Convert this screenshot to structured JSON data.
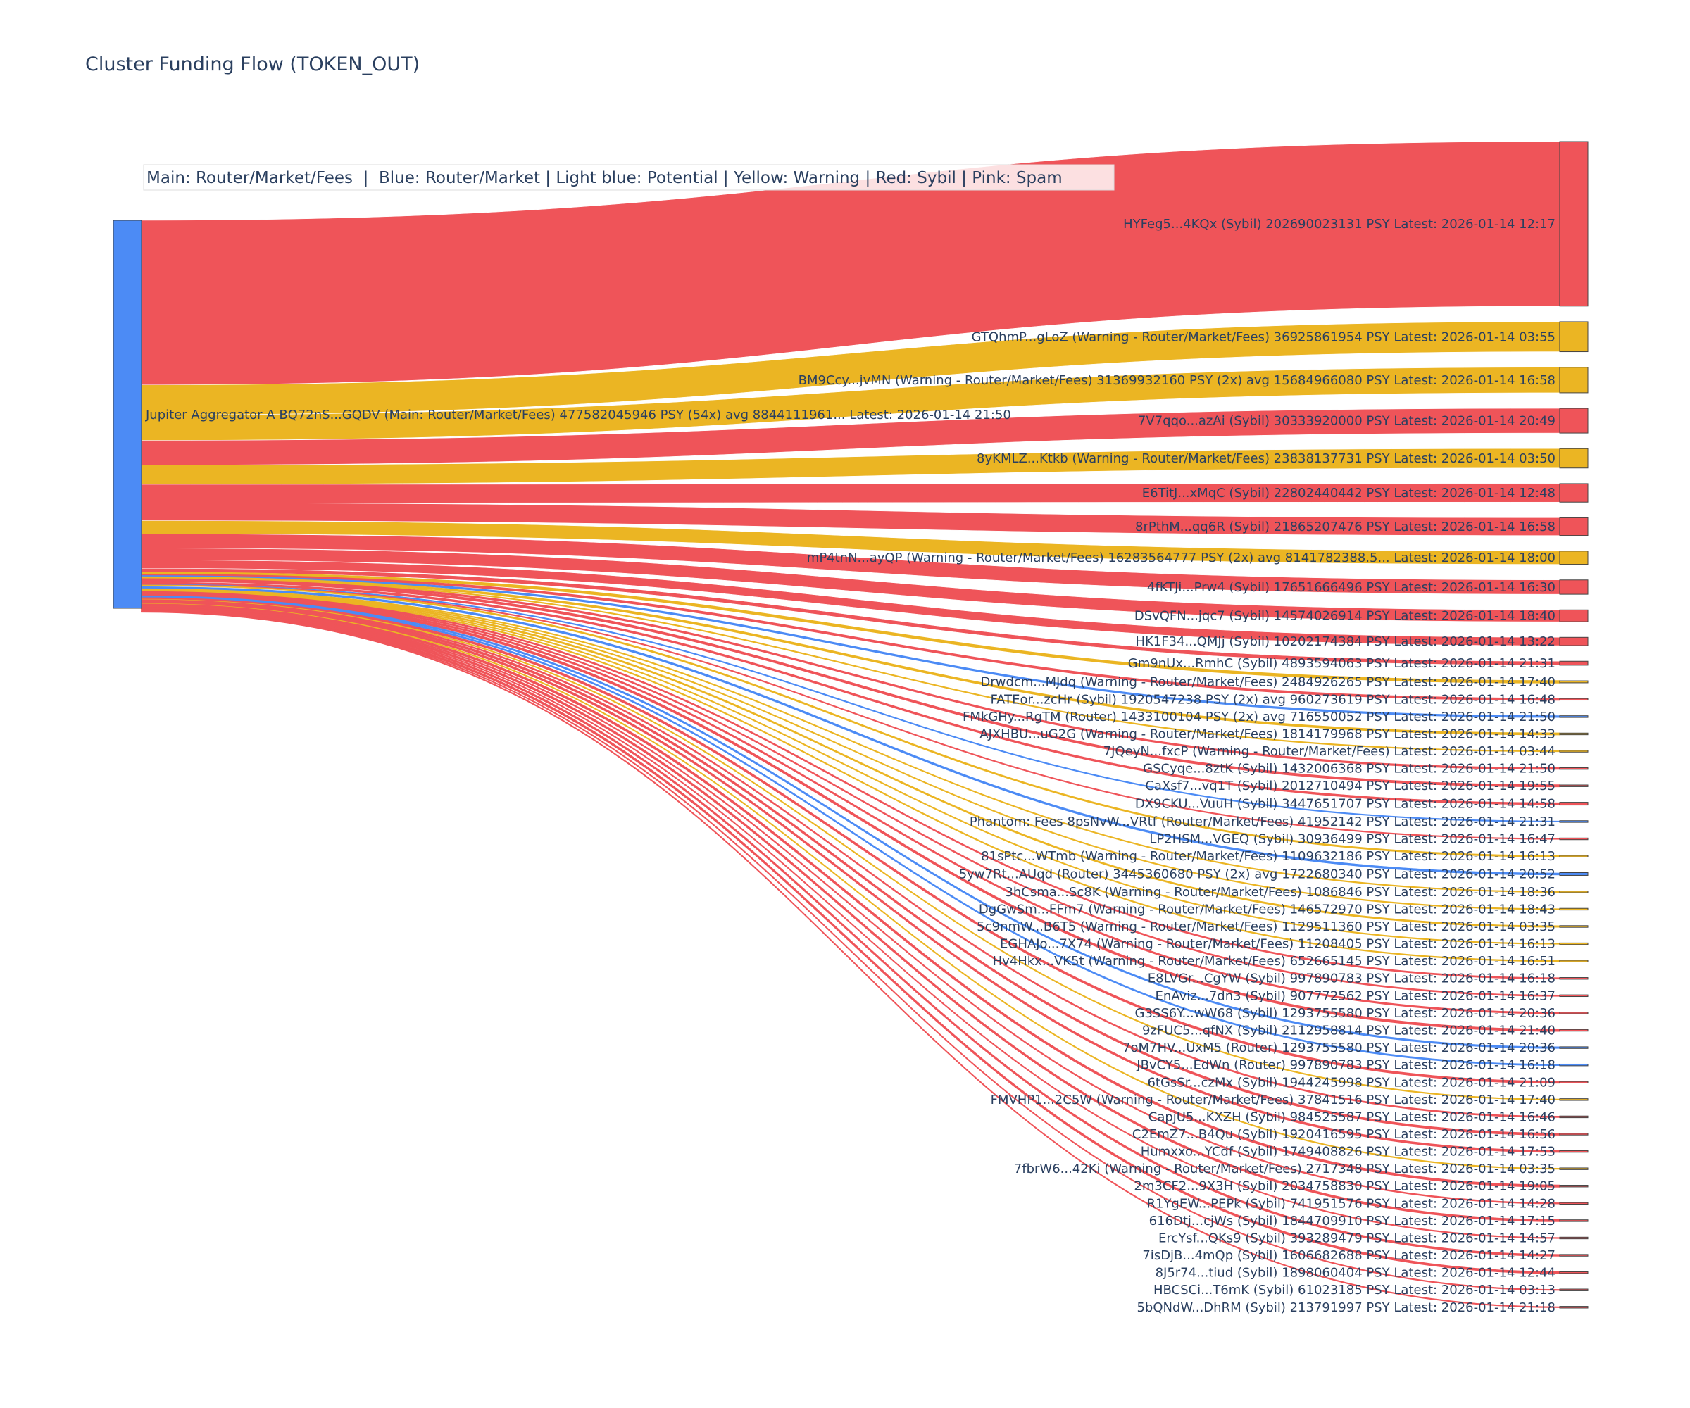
{
  "colors": {
    "sybil": "#ef5459",
    "warning": "#ebb523",
    "router": "#4c8bf5",
    "source_node": "#4c8bf5",
    "text": "#2a3f5f"
  },
  "chart_data": {
    "type": "sankey",
    "title": "Cluster Funding Flow (TOKEN_OUT)",
    "annotation": "Main: Router/Market/Fees  |  Blue: Router/Market | Light blue: Potential | Yellow: Warning | Red: Sybil | Pink: Spam",
    "source": {
      "label": "Jupiter Aggregator A BQ72nS...GQDV (Main: Router/Market/Fees) 477582045946 PSY (54x) avg 8844111961... Latest: 2026-01-14 21:50",
      "value": 477582045946
    },
    "targets": [
      {
        "label": "HYFeg5...4KQx (Sybil) 202690023131 PSY Latest: 2026-01-14 12:17",
        "category": "sybil",
        "value": 202690023131
      },
      {
        "label": "GTQhmP...gLoZ (Warning - Router/Market/Fees) 36925861954 PSY Latest: 2026-01-14 03:55",
        "category": "warning",
        "value": 36925861954
      },
      {
        "label": "BM9Ccy...jvMN (Warning - Router/Market/Fees) 31369932160 PSY (2x) avg 15684966080 PSY Latest: 2026-01-14 16:58",
        "category": "warning",
        "value": 31369932160
      },
      {
        "label": "7V7qqo...azAi (Sybil) 30333920000 PSY Latest: 2026-01-14 20:49",
        "category": "sybil",
        "value": 30333920000
      },
      {
        "label": "8yKMLZ...Ktkb (Warning - Router/Market/Fees) 23838137731 PSY Latest: 2026-01-14 03:50",
        "category": "warning",
        "value": 23838137731
      },
      {
        "label": "E6TitJ...xMqC (Sybil) 22802440442 PSY Latest: 2026-01-14 12:48",
        "category": "sybil",
        "value": 22802440442
      },
      {
        "label": "8rPthM...qq6R (Sybil) 21865207476 PSY Latest: 2026-01-14 16:58",
        "category": "sybil",
        "value": 21865207476
      },
      {
        "label": "mP4tnN...ayQP (Warning - Router/Market/Fees) 16283564777 PSY (2x) avg 8141782388.5... Latest: 2026-01-14 18:00",
        "category": "warning",
        "value": 16283564777
      },
      {
        "label": "4fKTJi...Prw4 (Sybil) 17651666496 PSY Latest: 2026-01-14 16:30",
        "category": "sybil",
        "value": 17651666496
      },
      {
        "label": "DSvQFN...jqc7 (Sybil) 14574026914 PSY Latest: 2026-01-14 18:40",
        "category": "sybil",
        "value": 14574026914
      },
      {
        "label": "HK1F34...QMJj (Sybil) 10202174384 PSY Latest: 2026-01-14 13:22",
        "category": "sybil",
        "value": 10202174384
      },
      {
        "label": "Gm9nUx...RmhC (Sybil) 4893594063 PSY Latest: 2026-01-14 21:31",
        "category": "sybil",
        "value": 4893594063
      },
      {
        "label": "Drwdcm...MJdq (Warning - Router/Market/Fees) 2484926265 PSY Latest: 2026-01-14 17:40",
        "category": "warning",
        "value": 2484926265
      },
      {
        "label": "FATEor...zcHr (Sybil) 1920547238 PSY (2x) avg 960273619 PSY Latest: 2026-01-14 16:48",
        "category": "sybil",
        "value": 1920547238
      },
      {
        "label": "FMkGHy...RgTM (Router) 1433100104 PSY (2x) avg 716550052 PSY Latest: 2026-01-14 21:50",
        "category": "router",
        "value": 1433100104
      },
      {
        "label": "AJXHBU...uG2G (Warning - Router/Market/Fees) 1814179968 PSY Latest: 2026-01-14 14:33",
        "category": "warning",
        "value": 1814179968
      },
      {
        "label": "7JQeyN...fxcP (Warning - Router/Market/Fees) Latest: 2026-01-14 03:44",
        "category": "warning",
        "value": 150000000
      },
      {
        "label": "GSCyqe...8ztK (Sybil) 1432006368 PSY Latest: 2026-01-14 21:50",
        "category": "sybil",
        "value": 1432006368
      },
      {
        "label": "CaXsf7...vq1T (Sybil) 2012710494 PSY Latest: 2026-01-14 19:55",
        "category": "sybil",
        "value": 2012710494
      },
      {
        "label": "DX9CKU...VuuH (Sybil) 3447651707 PSY Latest: 2026-01-14 14:58",
        "category": "sybil",
        "value": 3447651707
      },
      {
        "label": "Phantom: Fees 8psNvW...VRtf (Router/Market/Fees) 41952142 PSY Latest: 2026-01-14 21:31",
        "category": "router",
        "value": 41952142
      },
      {
        "label": "LP2HSM...VGEQ (Sybil) 30936499 PSY Latest: 2026-01-14 16:47",
        "category": "sybil",
        "value": 30936499
      },
      {
        "label": "81sPtc...WTmb (Warning - Router/Market/Fees) 1109632186 PSY Latest: 2026-01-14 16:13",
        "category": "warning",
        "value": 1109632186
      },
      {
        "label": "5yw7Rt...AUqd (Router) 3445360680 PSY (2x) avg 1722680340 PSY Latest: 2026-01-14 20:52",
        "category": "router",
        "value": 3445360680
      },
      {
        "label": "3hCsma...Sc8K (Warning - Router/Market/Fees) 1086846 PSY Latest: 2026-01-14 18:36",
        "category": "warning",
        "value": 1086846
      },
      {
        "label": "DgGwSm...FFm7 (Warning - Router/Market/Fees) 146572970 PSY Latest: 2026-01-14 18:43",
        "category": "warning",
        "value": 146572970
      },
      {
        "label": "5c9nmW...B6T5 (Warning - Router/Market/Fees) 1129511360 PSY Latest: 2026-01-14 03:35",
        "category": "warning",
        "value": 1129511360
      },
      {
        "label": "EGHAJo...7X74 (Warning - Router/Market/Fees) 11208405 PSY Latest: 2026-01-14 16:13",
        "category": "warning",
        "value": 11208405
      },
      {
        "label": "Hv4Hkx...VK5t (Warning - Router/Market/Fees) 652665145 PSY Latest: 2026-01-14 16:51",
        "category": "warning",
        "value": 652665145
      },
      {
        "label": "E8LVGr...CgYW (Sybil) 997890783 PSY Latest: 2026-01-14 16:18",
        "category": "sybil",
        "value": 997890783
      },
      {
        "label": "EnAviz...7dn3 (Sybil) 907772562 PSY Latest: 2026-01-14 16:37",
        "category": "sybil",
        "value": 907772562
      },
      {
        "label": "G3SS6Y...wW68 (Sybil) 1293755580 PSY Latest: 2026-01-14 20:36",
        "category": "sybil",
        "value": 1293755580
      },
      {
        "label": "9zFUC5...qfNX (Sybil) 2112958814 PSY Latest: 2026-01-14 21:40",
        "category": "sybil",
        "value": 2112958814
      },
      {
        "label": "7oM7HV...UxM5 (Router) 1293755580 PSY Latest: 2026-01-14 20:36",
        "category": "router",
        "value": 1293755580
      },
      {
        "label": "JBvCY5...EdWn (Router) 997890783 PSY Latest: 2026-01-14 16:18",
        "category": "router",
        "value": 997890783
      },
      {
        "label": "6tGsSr...czMx (Sybil) 1944245998 PSY Latest: 2026-01-14 21:09",
        "category": "sybil",
        "value": 1944245998
      },
      {
        "label": "FMVHP1...2C5W (Warning - Router/Market/Fees) 37841516 PSY Latest: 2026-01-14 17:40",
        "category": "warning",
        "value": 37841516
      },
      {
        "label": "CapjU5...KXZH (Sybil) 984525587 PSY Latest: 2026-01-14 16:46",
        "category": "sybil",
        "value": 984525587
      },
      {
        "label": "C2EmZ7...B4Qu (Sybil) 1920416595 PSY Latest: 2026-01-14 16:56",
        "category": "sybil",
        "value": 1920416595
      },
      {
        "label": "Humxxo...YCdf (Sybil) 1749408826 PSY Latest: 2026-01-14 17:53",
        "category": "sybil",
        "value": 1749408826
      },
      {
        "label": "7fbrW6...42Ki (Warning - Router/Market/Fees) 2717348 PSY Latest: 2026-01-14 03:35",
        "category": "warning",
        "value": 2717348
      },
      {
        "label": "2m3CF2...9X3H (Sybil) 2034758830 PSY Latest: 2026-01-14 19:05",
        "category": "sybil",
        "value": 2034758830
      },
      {
        "label": "R1YgEW...PEPk (Sybil) 741951576 PSY Latest: 2026-01-14 14:28",
        "category": "sybil",
        "value": 741951576
      },
      {
        "label": "616Dtj...cjWs (Sybil) 1844709910 PSY Latest: 2026-01-14 17:15",
        "category": "sybil",
        "value": 1844709910
      },
      {
        "label": "ErcYsf...QKs9 (Sybil) 393289479 PSY Latest: 2026-01-14 14:57",
        "category": "sybil",
        "value": 393289479
      },
      {
        "label": "7isDjB...4mQp (Sybil) 1606682688 PSY Latest: 2026-01-14 14:27",
        "category": "sybil",
        "value": 1606682688
      },
      {
        "label": "8J5r74...tiud (Sybil) 1898060404 PSY Latest: 2026-01-14 12:44",
        "category": "sybil",
        "value": 1898060404
      },
      {
        "label": "HBCSCi...T6mK (Sybil) 61023185 PSY Latest: 2026-01-14 03:13",
        "category": "sybil",
        "value": 61023185
      },
      {
        "label": "5bQNdW...DhRM (Sybil) 213791997 PSY Latest: 2026-01-14 21:18",
        "category": "sybil",
        "value": 213791997
      }
    ]
  }
}
